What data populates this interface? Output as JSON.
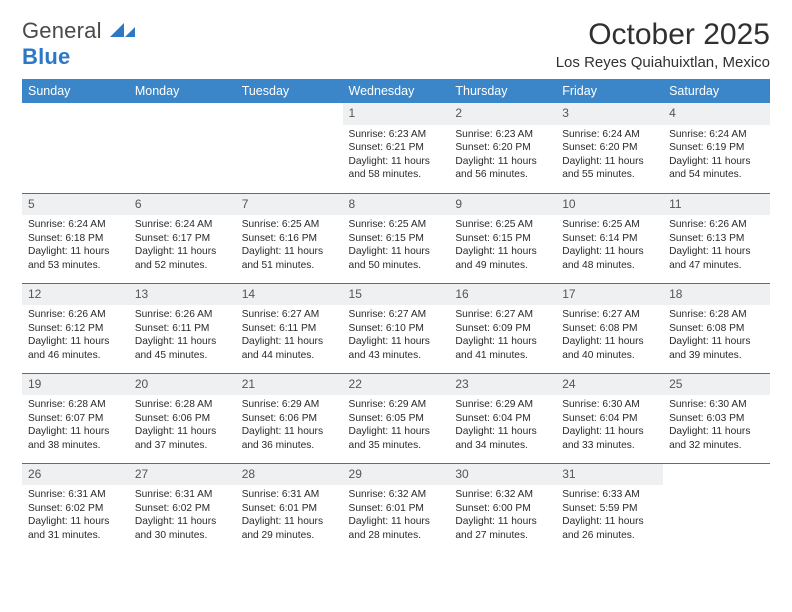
{
  "brand": {
    "text1": "General",
    "text2": "Blue",
    "mark_color": "#2d78c6"
  },
  "title": "October 2025",
  "location": "Los Reyes Quiahuixtlan, Mexico",
  "colors": {
    "header_bg": "#3b86c8",
    "header_text": "#ffffff",
    "rule": "#2d78c6",
    "daynum_bg": "#eef0f1",
    "body_text": "#2a2a2a"
  },
  "weekdays": [
    "Sunday",
    "Monday",
    "Tuesday",
    "Wednesday",
    "Thursday",
    "Friday",
    "Saturday"
  ],
  "weeks": [
    [
      {
        "n": "",
        "sr": "",
        "ss": "",
        "dl": ""
      },
      {
        "n": "",
        "sr": "",
        "ss": "",
        "dl": ""
      },
      {
        "n": "",
        "sr": "",
        "ss": "",
        "dl": ""
      },
      {
        "n": "1",
        "sr": "Sunrise: 6:23 AM",
        "ss": "Sunset: 6:21 PM",
        "dl": "Daylight: 11 hours and 58 minutes."
      },
      {
        "n": "2",
        "sr": "Sunrise: 6:23 AM",
        "ss": "Sunset: 6:20 PM",
        "dl": "Daylight: 11 hours and 56 minutes."
      },
      {
        "n": "3",
        "sr": "Sunrise: 6:24 AM",
        "ss": "Sunset: 6:20 PM",
        "dl": "Daylight: 11 hours and 55 minutes."
      },
      {
        "n": "4",
        "sr": "Sunrise: 6:24 AM",
        "ss": "Sunset: 6:19 PM",
        "dl": "Daylight: 11 hours and 54 minutes."
      }
    ],
    [
      {
        "n": "5",
        "sr": "Sunrise: 6:24 AM",
        "ss": "Sunset: 6:18 PM",
        "dl": "Daylight: 11 hours and 53 minutes."
      },
      {
        "n": "6",
        "sr": "Sunrise: 6:24 AM",
        "ss": "Sunset: 6:17 PM",
        "dl": "Daylight: 11 hours and 52 minutes."
      },
      {
        "n": "7",
        "sr": "Sunrise: 6:25 AM",
        "ss": "Sunset: 6:16 PM",
        "dl": "Daylight: 11 hours and 51 minutes."
      },
      {
        "n": "8",
        "sr": "Sunrise: 6:25 AM",
        "ss": "Sunset: 6:15 PM",
        "dl": "Daylight: 11 hours and 50 minutes."
      },
      {
        "n": "9",
        "sr": "Sunrise: 6:25 AM",
        "ss": "Sunset: 6:15 PM",
        "dl": "Daylight: 11 hours and 49 minutes."
      },
      {
        "n": "10",
        "sr": "Sunrise: 6:25 AM",
        "ss": "Sunset: 6:14 PM",
        "dl": "Daylight: 11 hours and 48 minutes."
      },
      {
        "n": "11",
        "sr": "Sunrise: 6:26 AM",
        "ss": "Sunset: 6:13 PM",
        "dl": "Daylight: 11 hours and 47 minutes."
      }
    ],
    [
      {
        "n": "12",
        "sr": "Sunrise: 6:26 AM",
        "ss": "Sunset: 6:12 PM",
        "dl": "Daylight: 11 hours and 46 minutes."
      },
      {
        "n": "13",
        "sr": "Sunrise: 6:26 AM",
        "ss": "Sunset: 6:11 PM",
        "dl": "Daylight: 11 hours and 45 minutes."
      },
      {
        "n": "14",
        "sr": "Sunrise: 6:27 AM",
        "ss": "Sunset: 6:11 PM",
        "dl": "Daylight: 11 hours and 44 minutes."
      },
      {
        "n": "15",
        "sr": "Sunrise: 6:27 AM",
        "ss": "Sunset: 6:10 PM",
        "dl": "Daylight: 11 hours and 43 minutes."
      },
      {
        "n": "16",
        "sr": "Sunrise: 6:27 AM",
        "ss": "Sunset: 6:09 PM",
        "dl": "Daylight: 11 hours and 41 minutes."
      },
      {
        "n": "17",
        "sr": "Sunrise: 6:27 AM",
        "ss": "Sunset: 6:08 PM",
        "dl": "Daylight: 11 hours and 40 minutes."
      },
      {
        "n": "18",
        "sr": "Sunrise: 6:28 AM",
        "ss": "Sunset: 6:08 PM",
        "dl": "Daylight: 11 hours and 39 minutes."
      }
    ],
    [
      {
        "n": "19",
        "sr": "Sunrise: 6:28 AM",
        "ss": "Sunset: 6:07 PM",
        "dl": "Daylight: 11 hours and 38 minutes."
      },
      {
        "n": "20",
        "sr": "Sunrise: 6:28 AM",
        "ss": "Sunset: 6:06 PM",
        "dl": "Daylight: 11 hours and 37 minutes."
      },
      {
        "n": "21",
        "sr": "Sunrise: 6:29 AM",
        "ss": "Sunset: 6:06 PM",
        "dl": "Daylight: 11 hours and 36 minutes."
      },
      {
        "n": "22",
        "sr": "Sunrise: 6:29 AM",
        "ss": "Sunset: 6:05 PM",
        "dl": "Daylight: 11 hours and 35 minutes."
      },
      {
        "n": "23",
        "sr": "Sunrise: 6:29 AM",
        "ss": "Sunset: 6:04 PM",
        "dl": "Daylight: 11 hours and 34 minutes."
      },
      {
        "n": "24",
        "sr": "Sunrise: 6:30 AM",
        "ss": "Sunset: 6:04 PM",
        "dl": "Daylight: 11 hours and 33 minutes."
      },
      {
        "n": "25",
        "sr": "Sunrise: 6:30 AM",
        "ss": "Sunset: 6:03 PM",
        "dl": "Daylight: 11 hours and 32 minutes."
      }
    ],
    [
      {
        "n": "26",
        "sr": "Sunrise: 6:31 AM",
        "ss": "Sunset: 6:02 PM",
        "dl": "Daylight: 11 hours and 31 minutes."
      },
      {
        "n": "27",
        "sr": "Sunrise: 6:31 AM",
        "ss": "Sunset: 6:02 PM",
        "dl": "Daylight: 11 hours and 30 minutes."
      },
      {
        "n": "28",
        "sr": "Sunrise: 6:31 AM",
        "ss": "Sunset: 6:01 PM",
        "dl": "Daylight: 11 hours and 29 minutes."
      },
      {
        "n": "29",
        "sr": "Sunrise: 6:32 AM",
        "ss": "Sunset: 6:01 PM",
        "dl": "Daylight: 11 hours and 28 minutes."
      },
      {
        "n": "30",
        "sr": "Sunrise: 6:32 AM",
        "ss": "Sunset: 6:00 PM",
        "dl": "Daylight: 11 hours and 27 minutes."
      },
      {
        "n": "31",
        "sr": "Sunrise: 6:33 AM",
        "ss": "Sunset: 5:59 PM",
        "dl": "Daylight: 11 hours and 26 minutes."
      },
      {
        "n": "",
        "sr": "",
        "ss": "",
        "dl": ""
      }
    ]
  ]
}
